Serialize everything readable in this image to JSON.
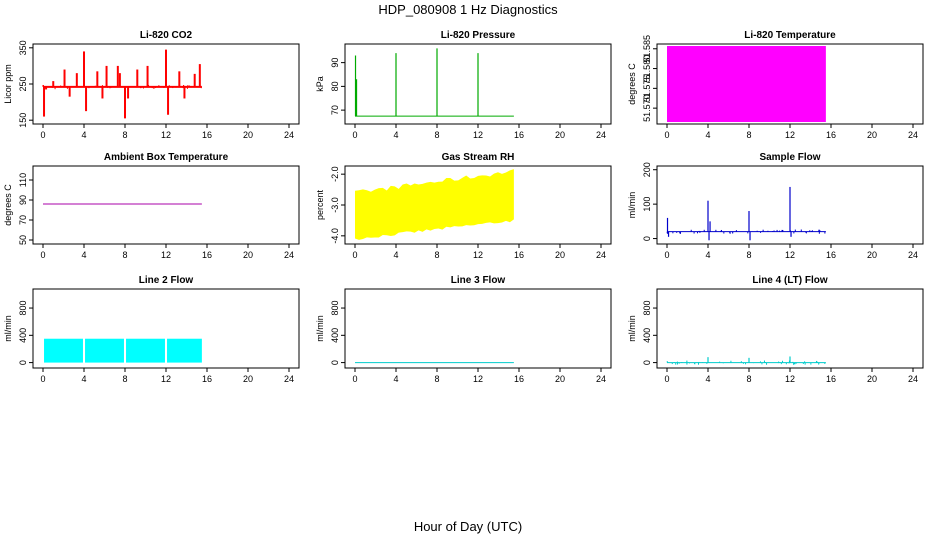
{
  "title": "HDP_080908  1 Hz Diagnostics",
  "xlabel": "Hour of Day (UTC)",
  "chart_data": [
    {
      "id": "p1",
      "type": "line",
      "title": "Li-820 CO2",
      "ylabel": "Licor ppm",
      "color": "#ff0000",
      "xlim": [
        0,
        24
      ],
      "xticks": [
        0,
        4,
        8,
        12,
        16,
        20,
        24
      ],
      "ylim": [
        145,
        355
      ],
      "yticks": [
        150,
        250,
        350
      ],
      "x_range": [
        0,
        15.5
      ],
      "baseline": 242,
      "spikes": [
        {
          "x": 0.1,
          "y": 160
        },
        {
          "x": 0.3,
          "y": 235
        },
        {
          "x": 1.0,
          "y": 258
        },
        {
          "x": 2.1,
          "y": 290
        },
        {
          "x": 2.6,
          "y": 215
        },
        {
          "x": 3.3,
          "y": 280
        },
        {
          "x": 4.0,
          "y": 340
        },
        {
          "x": 4.2,
          "y": 175
        },
        {
          "x": 5.3,
          "y": 285
        },
        {
          "x": 5.8,
          "y": 210
        },
        {
          "x": 6.2,
          "y": 300
        },
        {
          "x": 7.3,
          "y": 300
        },
        {
          "x": 7.5,
          "y": 280
        },
        {
          "x": 8.0,
          "y": 155
        },
        {
          "x": 8.3,
          "y": 210
        },
        {
          "x": 9.2,
          "y": 290
        },
        {
          "x": 10.2,
          "y": 300
        },
        {
          "x": 12.0,
          "y": 345
        },
        {
          "x": 12.2,
          "y": 165
        },
        {
          "x": 13.3,
          "y": 285
        },
        {
          "x": 13.8,
          "y": 210
        },
        {
          "x": 14.8,
          "y": 278
        },
        {
          "x": 15.3,
          "y": 305
        }
      ]
    },
    {
      "id": "p2",
      "type": "line",
      "title": "Li-820 Pressure",
      "ylabel": "kPa",
      "color": "#00aa00",
      "xlim": [
        0,
        24
      ],
      "xticks": [
        0,
        4,
        8,
        12,
        16,
        20,
        24
      ],
      "ylim": [
        65,
        97
      ],
      "yticks": [
        70,
        80,
        90
      ],
      "x_range": [
        0,
        15.5
      ],
      "baseline": 67.5,
      "spikes": [
        {
          "x": 0.05,
          "y": 93
        },
        {
          "x": 0.15,
          "y": 83
        },
        {
          "x": 4.0,
          "y": 94
        },
        {
          "x": 8.0,
          "y": 96
        },
        {
          "x": 12.0,
          "y": 94
        }
      ]
    },
    {
      "id": "p3",
      "type": "area",
      "title": "Li-820 Temperature",
      "ylabel": "degrees C",
      "color": "#ff00ff",
      "xlim": [
        0,
        24
      ],
      "xticks": [
        0,
        4,
        8,
        12,
        16,
        20,
        24
      ],
      "ylim": [
        51.5665,
        51.5857
      ],
      "yticks": [
        51.57,
        51.575,
        51.58,
        51.585
      ],
      "x_range": [
        0,
        15.5
      ],
      "fill_range": [
        51.5665,
        51.5857
      ]
    },
    {
      "id": "p4",
      "type": "line",
      "title": "Ambient Box Temperature",
      "ylabel": "degrees C",
      "color": "#aa00aa",
      "xlim": [
        0,
        24
      ],
      "xticks": [
        0,
        4,
        8,
        12,
        16,
        20,
        24
      ],
      "ylim": [
        48,
        122
      ],
      "yticks": [
        50,
        70,
        90,
        110
      ],
      "x_range": [
        0,
        15.5
      ],
      "baseline": 86
    },
    {
      "id": "p5",
      "type": "area",
      "title": "Gas Stream RH",
      "ylabel": "percent",
      "color": "#ffff00",
      "xlim": [
        0,
        24
      ],
      "xticks": [
        0,
        4,
        8,
        12,
        16,
        20,
        24
      ],
      "ylim": [
        -4.2,
        -1.8
      ],
      "yticks": [
        -4.0,
        -3.0,
        -2.0
      ],
      "x_range": [
        0,
        15.5
      ],
      "lower_band": [
        -4.1,
        -3.5
      ],
      "upper_band": [
        -2.6,
        -1.9
      ]
    },
    {
      "id": "p6",
      "type": "line",
      "title": "Sample Flow",
      "ylabel": "ml/min",
      "color": "#0000cc",
      "xlim": [
        0,
        24
      ],
      "xticks": [
        0,
        4,
        8,
        12,
        16,
        20,
        24
      ],
      "ylim": [
        -10,
        205
      ],
      "yticks": [
        0,
        100,
        200
      ],
      "x_range": [
        0,
        15.5
      ],
      "baseline": 20,
      "spikes": [
        {
          "x": 0.05,
          "y": 60
        },
        {
          "x": 0.15,
          "y": 5
        },
        {
          "x": 4.0,
          "y": 110
        },
        {
          "x": 4.1,
          "y": -5
        },
        {
          "x": 4.2,
          "y": 50
        },
        {
          "x": 8.0,
          "y": 80
        },
        {
          "x": 8.1,
          "y": -5
        },
        {
          "x": 12.0,
          "y": 150
        },
        {
          "x": 12.1,
          "y": 5
        }
      ]
    },
    {
      "id": "p7",
      "type": "area",
      "title": "Line 2 Flow",
      "ylabel": "ml/min",
      "color": "#00ffff",
      "xlim": [
        0,
        24
      ],
      "xticks": [
        0,
        4,
        8,
        12,
        16,
        20,
        24
      ],
      "ylim": [
        -50,
        1050
      ],
      "yticks": [
        0,
        400,
        800
      ],
      "segments": [
        [
          0.1,
          3.9
        ],
        [
          4.1,
          7.9
        ],
        [
          8.1,
          11.9
        ],
        [
          12.1,
          15.5
        ]
      ],
      "fill_range": [
        0,
        350
      ]
    },
    {
      "id": "p8",
      "type": "line",
      "title": "Line 3 Flow",
      "ylabel": "ml/min",
      "color": "#00cccc",
      "xlim": [
        0,
        24
      ],
      "xticks": [
        0,
        4,
        8,
        12,
        16,
        20,
        24
      ],
      "ylim": [
        -50,
        1050
      ],
      "yticks": [
        0,
        400,
        800
      ],
      "x_range": [
        0,
        15.5
      ],
      "baseline": 0
    },
    {
      "id": "p9",
      "type": "line",
      "title": "Line 4 (LT) Flow",
      "ylabel": "ml/min",
      "color": "#00cccc",
      "xlim": [
        0,
        24
      ],
      "xticks": [
        0,
        4,
        8,
        12,
        16,
        20,
        24
      ],
      "ylim": [
        -50,
        1050
      ],
      "yticks": [
        0,
        400,
        800
      ],
      "x_range": [
        0,
        15.5
      ],
      "baseline": 0,
      "spikes": [
        {
          "x": 4.0,
          "y": 80
        },
        {
          "x": 8.0,
          "y": 70
        },
        {
          "x": 12.0,
          "y": 90
        }
      ]
    }
  ]
}
